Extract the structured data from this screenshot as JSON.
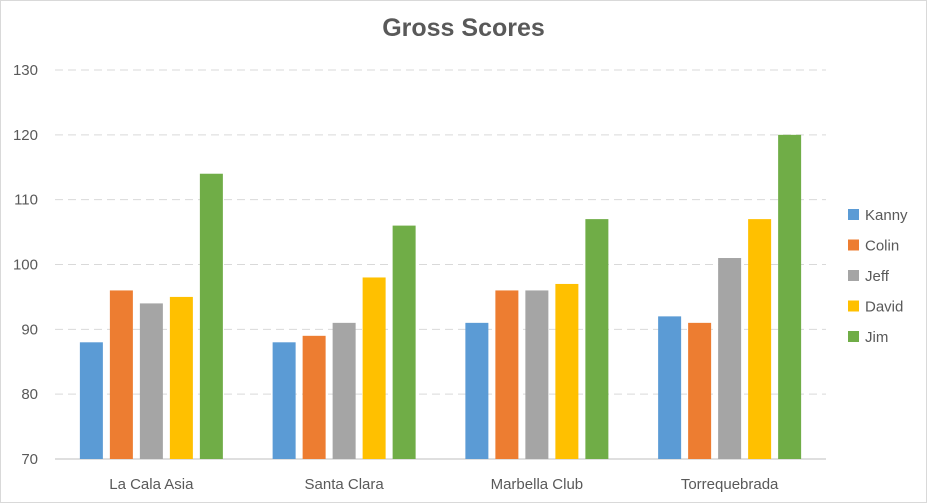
{
  "chart_data": {
    "type": "bar",
    "title": "Gross Scores",
    "xlabel": "",
    "ylabel": "",
    "categories": [
      "La Cala Asia",
      "Santa Clara",
      "Marbella Club",
      "Torrequebrada"
    ],
    "series": [
      {
        "name": "Kanny",
        "color": "#5b9bd5",
        "values": [
          88,
          88,
          91,
          92
        ]
      },
      {
        "name": "Colin",
        "color": "#ed7d31",
        "values": [
          96,
          89,
          96,
          91
        ]
      },
      {
        "name": "Jeff",
        "color": "#a5a5a5",
        "values": [
          94,
          91,
          96,
          101
        ]
      },
      {
        "name": "David",
        "color": "#ffc000",
        "values": [
          95,
          98,
          97,
          107
        ]
      },
      {
        "name": "Jim",
        "color": "#70ad47",
        "values": [
          114,
          106,
          107,
          120
        ]
      }
    ],
    "ylim": [
      70,
      130
    ],
    "yticks": [
      70,
      80,
      90,
      100,
      110,
      120,
      130
    ],
    "grid": true,
    "legend_position": "right"
  }
}
